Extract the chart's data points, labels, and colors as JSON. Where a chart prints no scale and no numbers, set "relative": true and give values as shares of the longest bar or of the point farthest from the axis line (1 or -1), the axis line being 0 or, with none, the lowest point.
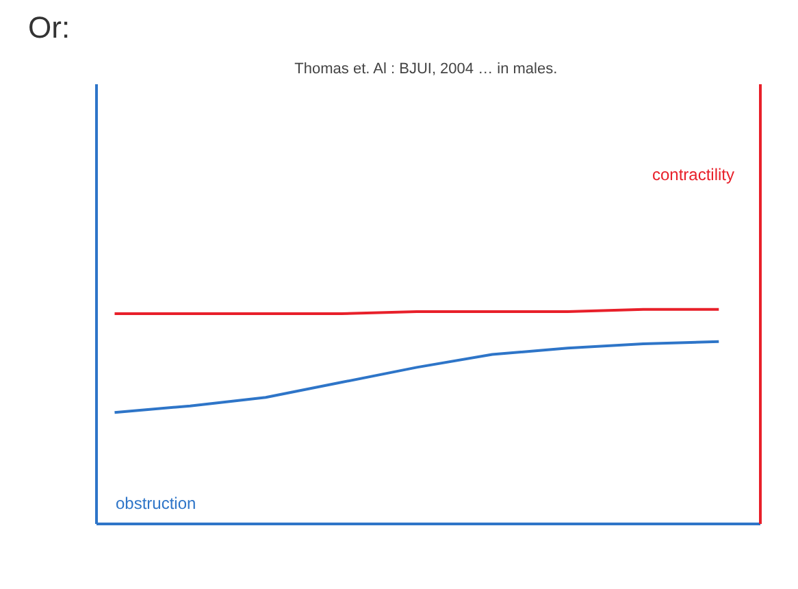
{
  "chart_data": {
    "type": "line",
    "title": "Or:",
    "subtitle": "Thomas et. Al : BJUI, 2004 …  in males.",
    "relative": true,
    "legend": false,
    "grid": false,
    "categories": [
      null,
      null,
      null,
      null,
      null,
      null,
      null,
      null,
      null
    ],
    "series": [
      {
        "name": "contractility",
        "color": "#e8202a",
        "values": [
          0.98,
          0.98,
          0.98,
          0.98,
          0.99,
          0.99,
          0.99,
          1,
          1
        ]
      },
      {
        "name": "obstruction",
        "color": "#2e75c8",
        "values": [
          0.52,
          0.55,
          0.59,
          0.66,
          0.73,
          0.79,
          0.82,
          0.84,
          0.85
        ]
      }
    ]
  }
}
